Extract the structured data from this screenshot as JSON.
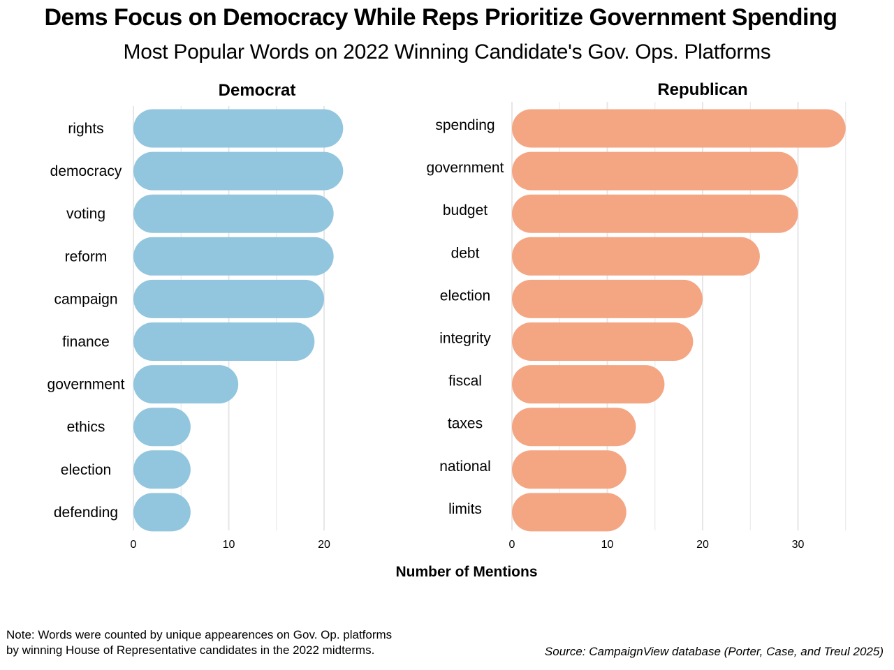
{
  "title": "Dems Focus on Democracy While Reps Prioritize Government Spending",
  "subtitle": "Most Popular Words on 2022 Winning Candidate's Gov. Ops. Platforms",
  "xlabel": "Number of Mentions",
  "note_lines": [
    "Note: Words were counted  by unique appearences on Gov. Op. platforms",
    "by winning House of Representative candidates in the 2022 midterms."
  ],
  "source": "Source: CampaignView database (Porter, Case, and Treul 2025)",
  "colors": {
    "democrat": "#92c5de",
    "republican": "#f4a582",
    "grid": "#e6e6e6"
  },
  "chart_data": [
    {
      "type": "bar",
      "orientation": "horizontal",
      "title": "Democrat",
      "categories": [
        "rights",
        "democracy",
        "voting",
        "reform",
        "campaign",
        "finance",
        "government",
        "ethics",
        "election",
        "defending"
      ],
      "values": [
        22,
        22,
        21,
        21,
        20,
        19,
        11,
        6,
        6,
        6
      ],
      "xlabel": "Number of Mentions",
      "xlim": [
        0,
        24
      ],
      "xticks": [
        0,
        10,
        20
      ],
      "grid": "vertical",
      "color": "#92c5de"
    },
    {
      "type": "bar",
      "orientation": "horizontal",
      "title": "Republican",
      "categories": [
        "spending",
        "government",
        "budget",
        "debt",
        "election",
        "integrity",
        "fiscal",
        "taxes",
        "national",
        "limits"
      ],
      "values": [
        35,
        30,
        30,
        26,
        20,
        19,
        16,
        13,
        12,
        12
      ],
      "xlabel": "Number of Mentions",
      "xlim": [
        0,
        37
      ],
      "xticks": [
        0,
        10,
        20,
        30
      ],
      "grid": "vertical",
      "color": "#f4a582"
    }
  ]
}
